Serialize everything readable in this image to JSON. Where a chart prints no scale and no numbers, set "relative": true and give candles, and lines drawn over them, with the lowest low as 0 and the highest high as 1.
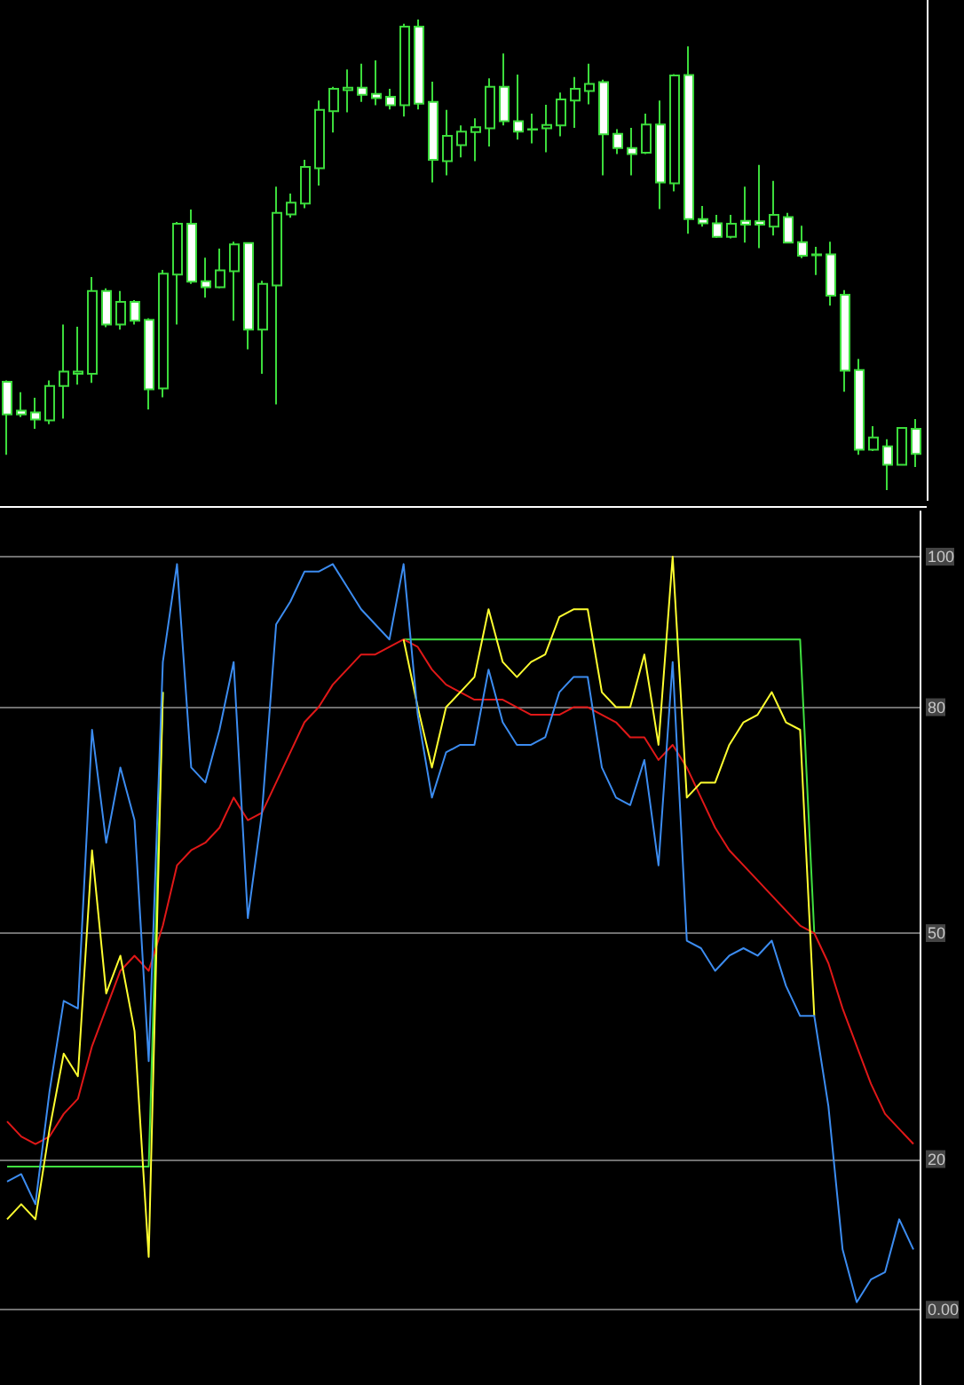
{
  "chart_data": [
    {
      "type": "candlestick",
      "relative": true,
      "tick_labels": false,
      "color": "#3cdc3c",
      "categories": [
        null,
        null,
        null,
        null,
        null,
        null,
        null,
        null,
        null,
        null,
        null,
        null,
        null,
        null,
        null,
        null,
        null,
        null,
        null,
        null,
        null,
        null,
        null,
        null,
        null,
        null,
        null,
        null,
        null,
        null,
        null,
        null,
        null,
        null,
        null,
        null,
        null,
        null,
        null,
        null,
        null,
        null,
        null,
        null,
        null,
        null,
        null,
        null,
        null,
        null,
        null,
        null,
        null,
        null,
        null,
        null,
        null,
        null,
        null,
        null,
        null,
        null,
        null,
        null,
        null
      ],
      "ohlc": [
        [
          0.23,
          0.233,
          0.075,
          0.161
        ],
        [
          0.169,
          0.208,
          0.155,
          0.161
        ],
        [
          0.165,
          0.196,
          0.13,
          0.15
        ],
        [
          0.148,
          0.233,
          0.14,
          0.221
        ],
        [
          0.221,
          0.352,
          0.152,
          0.252
        ],
        [
          0.247,
          0.347,
          0.224,
          0.252
        ],
        [
          0.247,
          0.453,
          0.228,
          0.423
        ],
        [
          0.423,
          0.429,
          0.346,
          0.352
        ],
        [
          0.352,
          0.423,
          0.341,
          0.4
        ],
        [
          0.4,
          0.404,
          0.352,
          0.36
        ],
        [
          0.362,
          0.365,
          0.171,
          0.214
        ],
        [
          0.216,
          0.468,
          0.197,
          0.46
        ],
        [
          0.458,
          0.57,
          0.352,
          0.566
        ],
        [
          0.566,
          0.596,
          0.438,
          0.443
        ],
        [
          0.444,
          0.494,
          0.409,
          0.431
        ],
        [
          0.431,
          0.513,
          0.429,
          0.467
        ],
        [
          0.465,
          0.528,
          0.36,
          0.522
        ],
        [
          0.525,
          0.526,
          0.299,
          0.341
        ],
        [
          0.341,
          0.445,
          0.247,
          0.438
        ],
        [
          0.435,
          0.645,
          0.182,
          0.589
        ],
        [
          0.586,
          0.63,
          0.579,
          0.611
        ],
        [
          0.609,
          0.702,
          0.599,
          0.687
        ],
        [
          0.684,
          0.828,
          0.647,
          0.808
        ],
        [
          0.805,
          0.857,
          0.76,
          0.853
        ],
        [
          0.85,
          0.894,
          0.803,
          0.855
        ],
        [
          0.855,
          0.906,
          0.825,
          0.84
        ],
        [
          0.842,
          0.913,
          0.818,
          0.833
        ],
        [
          0.836,
          0.853,
          0.809,
          0.818
        ],
        [
          0.818,
          0.991,
          0.794,
          0.985
        ],
        [
          0.985,
          1,
          0.809,
          0.821
        ],
        [
          0.825,
          0.868,
          0.654,
          0.702
        ],
        [
          0.699,
          0.808,
          0.669,
          0.753
        ],
        [
          0.733,
          0.775,
          0.707,
          0.762
        ],
        [
          0.761,
          0.79,
          0.699,
          0.771
        ],
        [
          0.769,
          0.875,
          0.73,
          0.857
        ],
        [
          0.857,
          0.928,
          0.775,
          0.784
        ],
        [
          0.784,
          0.883,
          0.745,
          0.762
        ],
        [
          0.767,
          0.8,
          0.737,
          0.766
        ],
        [
          0.769,
          0.819,
          0.718,
          0.776
        ],
        [
          0.775,
          0.845,
          0.752,
          0.83
        ],
        [
          0.828,
          0.878,
          0.77,
          0.853
        ],
        [
          0.848,
          0.906,
          0.82,
          0.863
        ],
        [
          0.867,
          0.872,
          0.669,
          0.756
        ],
        [
          0.757,
          0.767,
          0.714,
          0.727
        ],
        [
          0.727,
          0.77,
          0.669,
          0.714
        ],
        [
          0.717,
          0.8,
          0.714,
          0.777
        ],
        [
          0.777,
          0.828,
          0.597,
          0.654
        ],
        [
          0.652,
          0.884,
          0.635,
          0.881
        ],
        [
          0.882,
          0.943,
          0.545,
          0.576
        ],
        [
          0.576,
          0.604,
          0.56,
          0.567
        ],
        [
          0.567,
          0.585,
          0.536,
          0.538
        ],
        [
          0.538,
          0.585,
          0.535,
          0.566
        ],
        [
          0.572,
          0.645,
          0.526,
          0.564
        ],
        [
          0.571,
          0.691,
          0.514,
          0.564
        ],
        [
          0.56,
          0.657,
          0.541,
          0.585
        ],
        [
          0.58,
          0.589,
          0.525,
          0.526
        ],
        [
          0.527,
          0.562,
          0.493,
          0.498
        ],
        [
          0.501,
          0.517,
          0.457,
          0.499
        ],
        [
          0.501,
          0.528,
          0.392,
          0.413
        ],
        [
          0.415,
          0.425,
          0.209,
          0.254
        ],
        [
          0.255,
          0.279,
          0.075,
          0.086
        ],
        [
          0.086,
          0.136,
          0.083,
          0.112
        ],
        [
          0.093,
          0.108,
          0,
          0.054
        ],
        [
          0.054,
          0.132,
          0.054,
          0.132
        ],
        [
          0.13,
          0.151,
          0.049,
          0.077
        ]
      ]
    },
    {
      "type": "line",
      "tick_labels": "y",
      "grid": "y",
      "ylim": [
        -10,
        106
      ],
      "yticks": [
        {
          "value": 0,
          "label": "0.00"
        },
        20,
        50,
        80,
        100
      ],
      "categories": [
        null,
        null,
        null,
        null,
        null,
        null,
        null,
        null,
        null,
        null,
        null,
        null,
        null,
        null,
        null,
        null,
        null,
        null,
        null,
        null,
        null,
        null,
        null,
        null,
        null,
        null,
        null,
        null,
        null,
        null,
        null,
        null,
        null,
        null,
        null,
        null,
        null,
        null,
        null,
        null,
        null,
        null,
        null,
        null,
        null,
        null,
        null,
        null,
        null,
        null,
        null,
        null,
        null,
        null,
        null,
        null,
        null,
        null,
        null,
        null,
        null,
        null,
        null,
        null,
        null
      ],
      "series": [
        {
          "color": "#40e040",
          "values": [
            19,
            19,
            19,
            19,
            19,
            19,
            19,
            19,
            19,
            19,
            19,
            82,
            null,
            null,
            null,
            null,
            null,
            null,
            null,
            null,
            null,
            null,
            null,
            null,
            null,
            null,
            null,
            null,
            89,
            89,
            89,
            89,
            89,
            89,
            89,
            89,
            89,
            89,
            89,
            89,
            89,
            89,
            89,
            89,
            89,
            89,
            89,
            89,
            89,
            89,
            89,
            89,
            89,
            89,
            89,
            89,
            89,
            50,
            null,
            null,
            null,
            null,
            null,
            null,
            null
          ]
        },
        {
          "color": "#e01818",
          "values": [
            25,
            23,
            22,
            23,
            26,
            28,
            35,
            40,
            45,
            47,
            45,
            51,
            59,
            61,
            62,
            64,
            68,
            65,
            66,
            70,
            74,
            78,
            80,
            83,
            85,
            87,
            87,
            88,
            89,
            88,
            85,
            83,
            82,
            81,
            81,
            81,
            80,
            79,
            79,
            79,
            80,
            80,
            79,
            78,
            76,
            76,
            73,
            75,
            72,
            68,
            64,
            61,
            59,
            57,
            55,
            53,
            51,
            50,
            46,
            40,
            35,
            30,
            26,
            24,
            22
          ]
        },
        {
          "color": "#ffff30",
          "values": [
            12,
            14,
            12,
            24,
            34,
            31,
            61,
            42,
            47,
            37,
            7,
            82,
            null,
            null,
            null,
            null,
            null,
            null,
            null,
            null,
            null,
            null,
            null,
            null,
            null,
            null,
            null,
            null,
            89,
            80,
            72,
            80,
            82,
            84,
            93,
            86,
            84,
            86,
            87,
            92,
            93,
            93,
            82,
            80,
            80,
            87,
            75,
            100,
            68,
            70,
            70,
            75,
            78,
            79,
            82,
            78,
            77,
            39,
            null,
            null,
            null,
            null,
            null,
            null,
            null
          ]
        },
        {
          "color": "#3c8cf0",
          "values": [
            17,
            18,
            14,
            29,
            41,
            40,
            77,
            62,
            72,
            65,
            33,
            86,
            99,
            72,
            70,
            77,
            86,
            52,
            66,
            91,
            94,
            98,
            98,
            99,
            96,
            93,
            91,
            89,
            99,
            79,
            68,
            74,
            75,
            75,
            85,
            78,
            75,
            75,
            76,
            82,
            84,
            84,
            72,
            68,
            67,
            73,
            59,
            86,
            49,
            48,
            45,
            47,
            48,
            47,
            49,
            43,
            39,
            39,
            27,
            8,
            1,
            4,
            5,
            12,
            8
          ]
        }
      ]
    }
  ]
}
